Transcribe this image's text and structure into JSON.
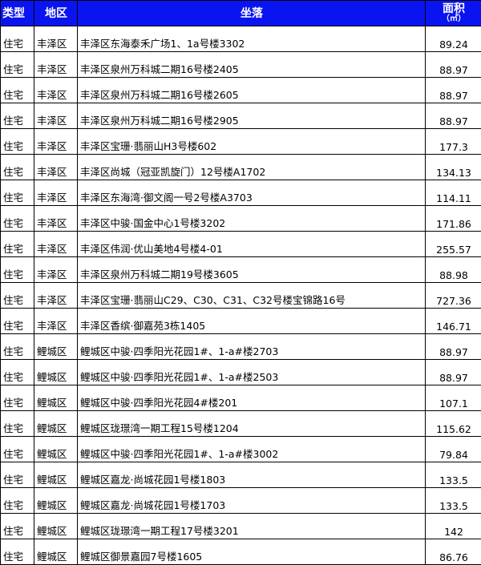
{
  "header": {
    "type": "类型",
    "district": "地区",
    "location": "坐落",
    "area": "面积",
    "area_unit": "（㎡）"
  },
  "header_color": "#0a14f0",
  "rows": [
    {
      "type": "住宅",
      "district": "丰泽区",
      "location": "丰泽区东海泰禾广场1、1a号楼3302",
      "area": "89.24"
    },
    {
      "type": "住宅",
      "district": "丰泽区",
      "location": "丰泽区泉州万科城二期16号楼2405",
      "area": "88.97"
    },
    {
      "type": "住宅",
      "district": "丰泽区",
      "location": "丰泽区泉州万科城二期16号楼2605",
      "area": "88.97"
    },
    {
      "type": "住宅",
      "district": "丰泽区",
      "location": "丰泽区泉州万科城二期16号楼2905",
      "area": "88.97"
    },
    {
      "type": "住宅",
      "district": "丰泽区",
      "location": "丰泽区宝珊·翡丽山H3号楼602",
      "area": "177.3"
    },
    {
      "type": "住宅",
      "district": "丰泽区",
      "location": "丰泽区尚城（冠亚凯旋门）12号楼A1702",
      "area": "134.13"
    },
    {
      "type": "住宅",
      "district": "丰泽区",
      "location": "丰泽区东海湾·御文阁一号2号楼A3703",
      "area": "114.11"
    },
    {
      "type": "住宅",
      "district": "丰泽区",
      "location": "丰泽区中骏·国金中心1号楼3202",
      "area": "171.86"
    },
    {
      "type": "住宅",
      "district": "丰泽区",
      "location": "丰泽区伟润·优山美地4号楼4-01",
      "area": "255.57"
    },
    {
      "type": "住宅",
      "district": "丰泽区",
      "location": "丰泽区泉州万科城二期19号楼3605",
      "area": "88.98"
    },
    {
      "type": "住宅",
      "district": "丰泽区",
      "location": "丰泽区宝珊·翡丽山C29、C30、C31、C32号楼宝锦路16号",
      "area": "727.36"
    },
    {
      "type": "住宅",
      "district": "丰泽区",
      "location": "丰泽区香缤·御嘉苑3栋1405",
      "area": "146.71"
    },
    {
      "type": "住宅",
      "district": "鲤城区",
      "location": "鲤城区中骏·四季阳光花园1#、1-a#楼2703",
      "area": "88.97"
    },
    {
      "type": "住宅",
      "district": "鲤城区",
      "location": "鲤城区中骏·四季阳光花园1#、1-a#楼2503",
      "area": "88.97"
    },
    {
      "type": "住宅",
      "district": "鲤城区",
      "location": "鲤城区中骏·四季阳光花园4#楼201",
      "area": "107.1"
    },
    {
      "type": "住宅",
      "district": "鲤城区",
      "location": "鲤城区珑璟湾一期工程15号楼1204",
      "area": "115.62"
    },
    {
      "type": "住宅",
      "district": "鲤城区",
      "location": "鲤城区中骏·四季阳光花园1#、1-a#楼3002",
      "area": "79.84"
    },
    {
      "type": "住宅",
      "district": "鲤城区",
      "location": "鲤城区嘉龙·尚城花园1号楼1803",
      "area": "133.5"
    },
    {
      "type": "住宅",
      "district": "鲤城区",
      "location": "鲤城区嘉龙·尚城花园1号楼1703",
      "area": "133.5"
    },
    {
      "type": "住宅",
      "district": "鲤城区",
      "location": "鲤城区珑璟湾一期工程17号楼3201",
      "area": "142"
    },
    {
      "type": "住宅",
      "district": "鲤城区",
      "location": "鲤城区御景嘉园7号楼1605",
      "area": "86.76"
    }
  ]
}
